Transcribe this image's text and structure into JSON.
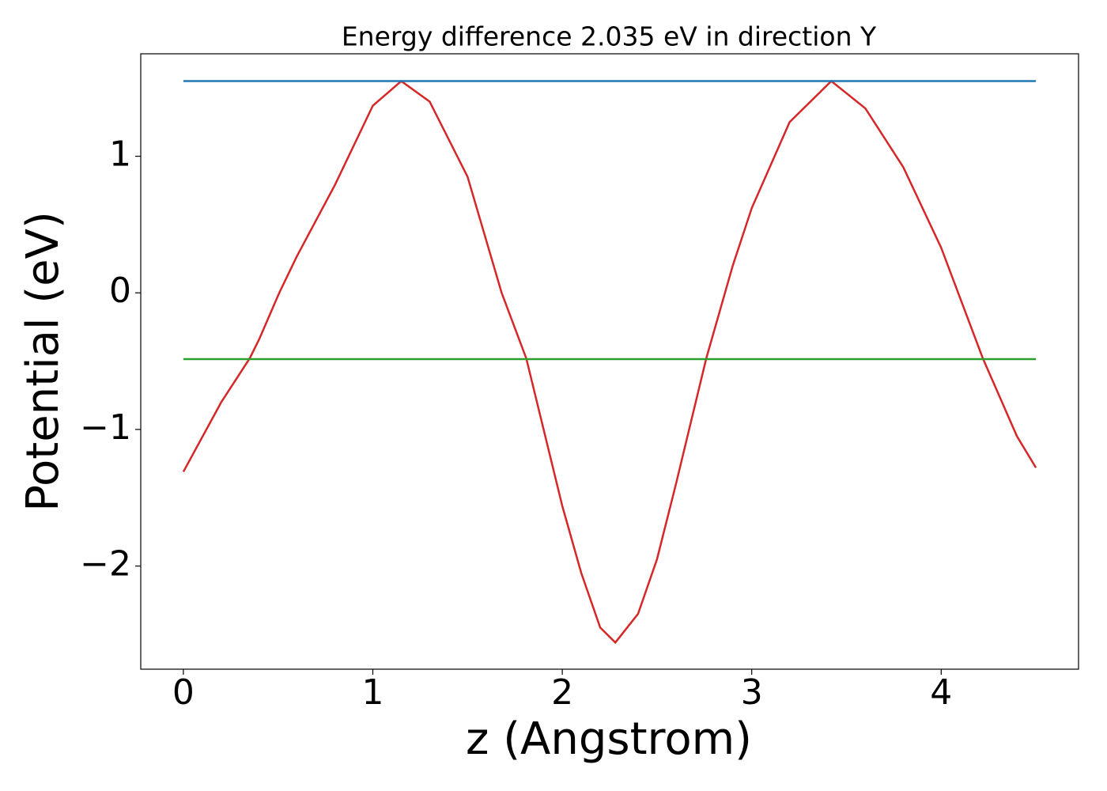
{
  "chart_data": {
    "type": "line",
    "title": "Energy difference 2.035 eV in direction Y",
    "x_label": "z (Angstrom)",
    "y_label": "Potential (eV)",
    "x": [
      0,
      0.2,
      0.35,
      0.4,
      0.506,
      0.6,
      0.8,
      1.0,
      1.15,
      1.3,
      1.5,
      1.68,
      1.81,
      2.0,
      2.1,
      2.2,
      2.28,
      2.4,
      2.5,
      2.6,
      2.76,
      2.9,
      3.0,
      3.2,
      3.42,
      3.6,
      3.8,
      4.0,
      4.22,
      4.4,
      4.5
    ],
    "series": [
      {
        "color": "#d62728",
        "values": [
          -1.31,
          -0.8,
          -0.48,
          -0.34,
          0,
          0.27,
          0.79,
          1.37,
          1.55,
          1.4,
          0.85,
          0,
          -0.48,
          -1.56,
          -2.05,
          -2.45,
          -2.56,
          -2.35,
          -1.95,
          -1.4,
          -0.48,
          0.2,
          0.62,
          1.25,
          1.55,
          1.35,
          0.92,
          0.33,
          -0.48,
          -1.05,
          -1.28
        ]
      },
      {
        "color": "#1f77b4",
        "values": [
          1.55,
          null,
          null,
          null,
          null,
          null,
          null,
          null,
          null,
          null,
          null,
          null,
          null,
          null,
          null,
          null,
          null,
          null,
          null,
          null,
          null,
          null,
          null,
          null,
          null,
          null,
          null,
          null,
          null,
          null,
          1.55
        ]
      },
      {
        "color": "#2ca02c",
        "values": [
          -0.485,
          null,
          null,
          null,
          null,
          null,
          null,
          null,
          null,
          null,
          null,
          null,
          null,
          null,
          null,
          null,
          null,
          null,
          null,
          null,
          null,
          null,
          null,
          null,
          null,
          null,
          null,
          null,
          null,
          null,
          -0.485
        ]
      }
    ],
    "xlim": [
      -0.225,
      4.725
    ],
    "ylim": [
      -2.755,
      1.75
    ],
    "xticks": [
      0,
      1,
      2,
      3,
      4
    ],
    "yticks": [
      {
        "value": -2,
        "label": "−2"
      },
      {
        "value": -1,
        "label": "−1"
      },
      0,
      1
    ]
  }
}
